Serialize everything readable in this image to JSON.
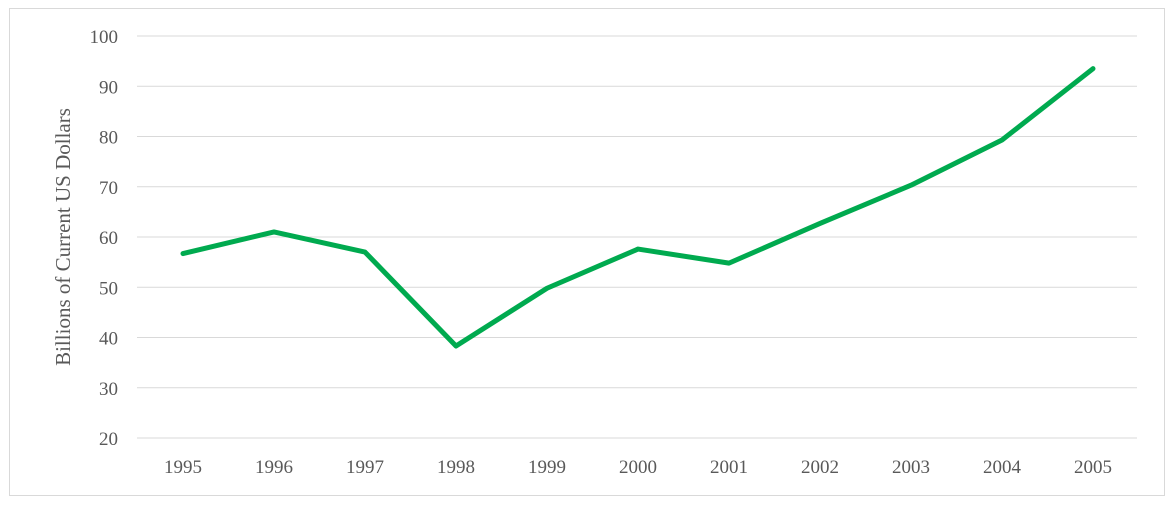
{
  "chart_data": {
    "type": "line",
    "title": "",
    "xlabel": "",
    "ylabel": "Billions of Current US Dollars",
    "categories": [
      "1995",
      "1996",
      "1997",
      "1998",
      "1999",
      "2000",
      "2001",
      "2002",
      "2003",
      "2004",
      "2005"
    ],
    "series": [
      {
        "values": [
          56.7,
          61.0,
          57.0,
          38.3,
          49.8,
          57.6,
          54.8,
          62.7,
          70.3,
          79.3,
          93.5
        ]
      }
    ],
    "ylim": [
      20,
      100
    ],
    "yticks": [
      100,
      90,
      80,
      70,
      60,
      50,
      40,
      30,
      20
    ],
    "grid": true,
    "legend": "none",
    "colors": {
      "line": "#00aa4f",
      "grid": "#d9d9d9",
      "text": "#595959"
    }
  }
}
